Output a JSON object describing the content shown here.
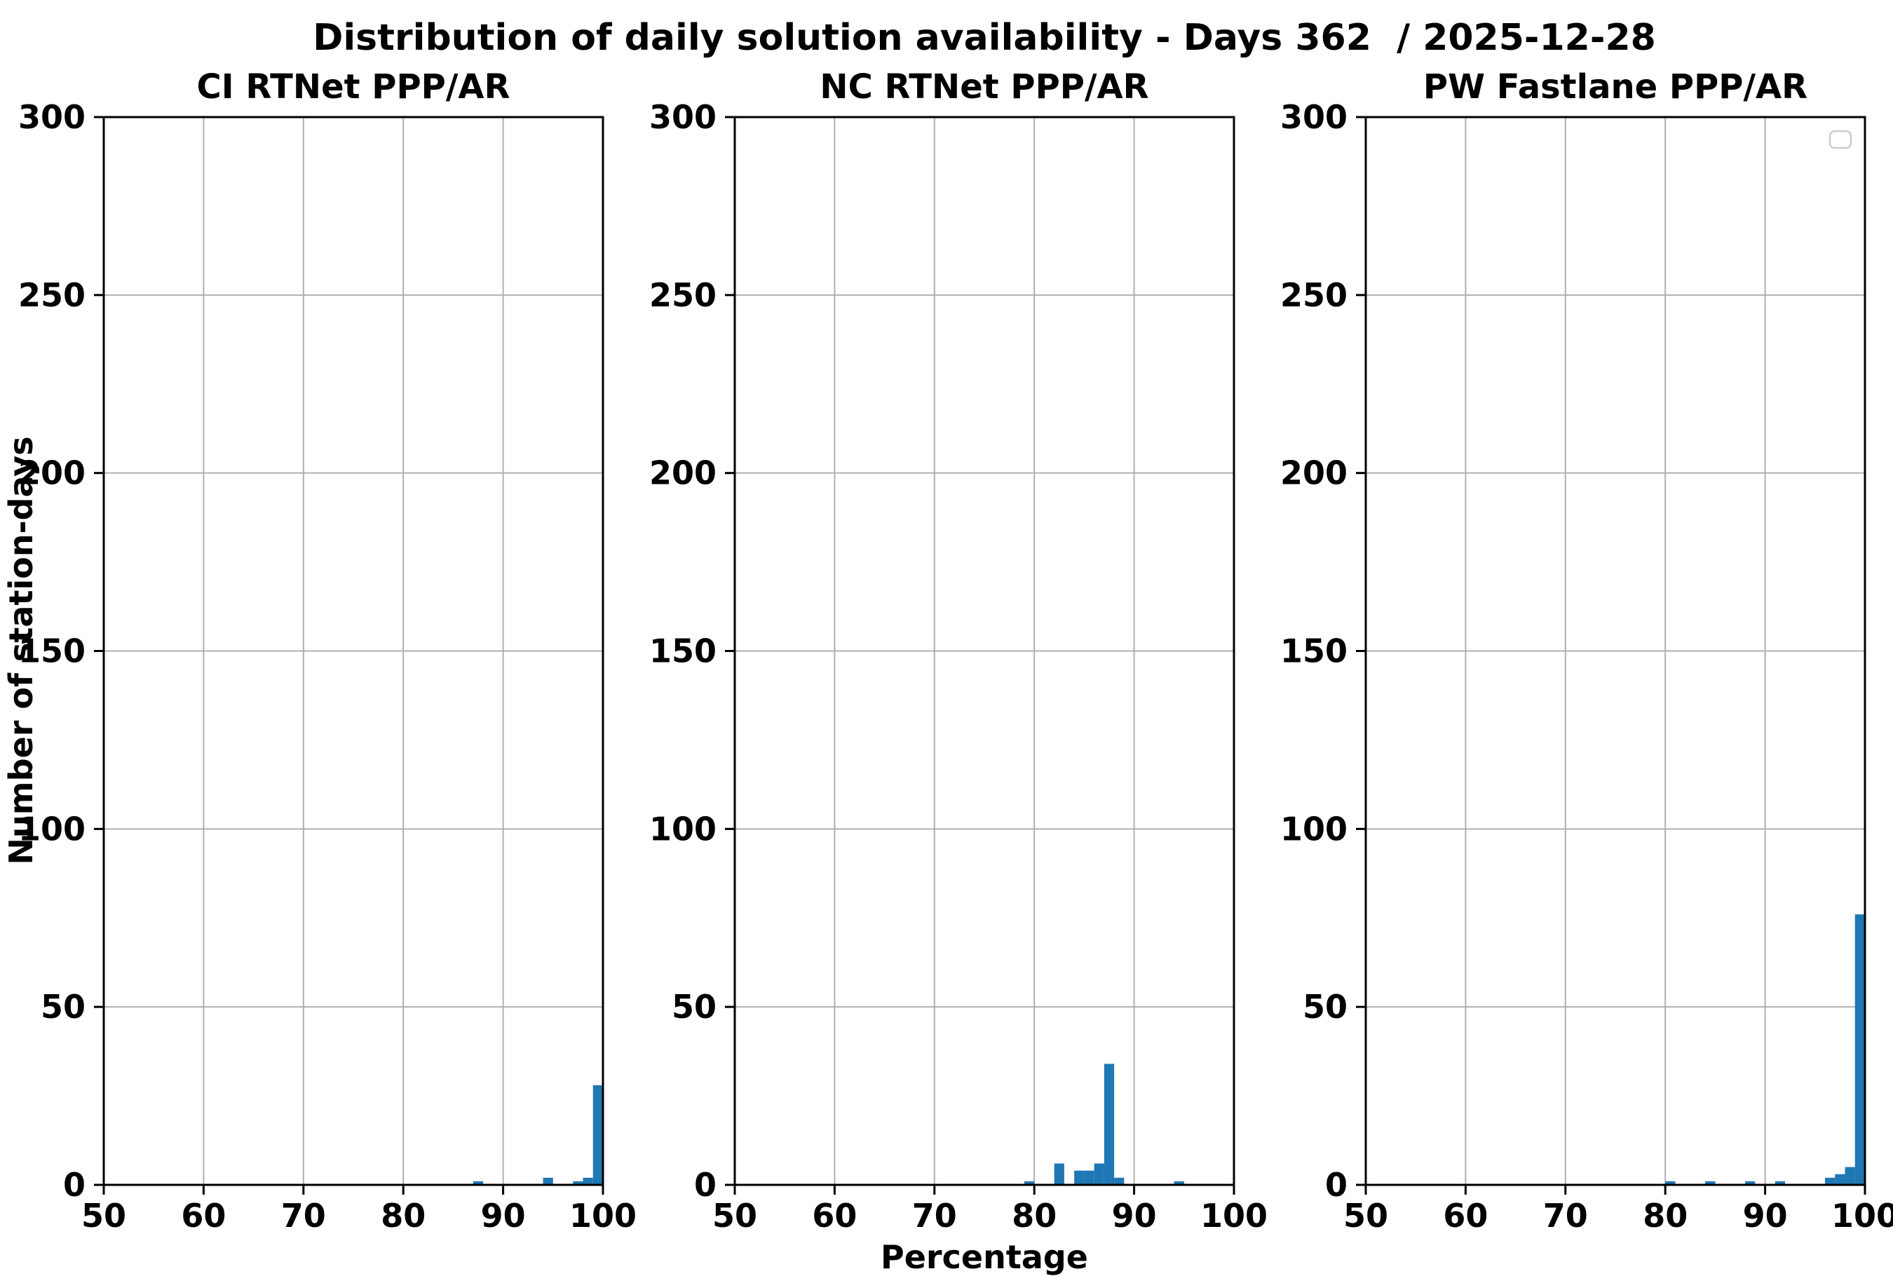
{
  "figure": {
    "title": "Distribution of daily solution availability - Days 362  / 2025-12-28",
    "ylabel": "Number of station-days",
    "xlabel": "Percentage",
    "background_color": "#ffffff",
    "bar_color": "#1f77b4",
    "grid_color": "#b0b0b0",
    "spine_color": "#000000",
    "tick_color": "#000000"
  },
  "chart_data": [
    {
      "type": "bar",
      "title": "CI RTNet PPP/AR",
      "xlabel": "Percentage",
      "ylabel": "Number of station-days",
      "xlim": [
        50,
        100
      ],
      "ylim": [
        0,
        300
      ],
      "xticks": [
        50,
        60,
        70,
        80,
        90,
        100
      ],
      "yticks": [
        0,
        50,
        100,
        150,
        200,
        250,
        300
      ],
      "grid": true,
      "bin_width": 1,
      "bars": [
        {
          "x": 87,
          "count": 1
        },
        {
          "x": 94,
          "count": 2
        },
        {
          "x": 97,
          "count": 1
        },
        {
          "x": 98,
          "count": 2
        },
        {
          "x": 99,
          "count": 28
        }
      ],
      "legend_box": false
    },
    {
      "type": "bar",
      "title": "NC RTNet PPP/AR",
      "xlabel": "Percentage",
      "ylabel": "Number of station-days",
      "xlim": [
        50,
        100
      ],
      "ylim": [
        0,
        300
      ],
      "xticks": [
        50,
        60,
        70,
        80,
        90,
        100
      ],
      "yticks": [
        0,
        50,
        100,
        150,
        200,
        250,
        300
      ],
      "grid": true,
      "bin_width": 1,
      "bars": [
        {
          "x": 79,
          "count": 1
        },
        {
          "x": 82,
          "count": 6
        },
        {
          "x": 84,
          "count": 4
        },
        {
          "x": 85,
          "count": 4
        },
        {
          "x": 86,
          "count": 6
        },
        {
          "x": 87,
          "count": 34
        },
        {
          "x": 88,
          "count": 2
        },
        {
          "x": 94,
          "count": 1
        }
      ],
      "legend_box": false
    },
    {
      "type": "bar",
      "title": "PW Fastlane PPP/AR",
      "xlabel": "Percentage",
      "ylabel": "Number of station-days",
      "xlim": [
        50,
        100
      ],
      "ylim": [
        0,
        300
      ],
      "xticks": [
        50,
        60,
        70,
        80,
        90,
        100
      ],
      "yticks": [
        0,
        50,
        100,
        150,
        200,
        250,
        300
      ],
      "grid": true,
      "bin_width": 1,
      "bars": [
        {
          "x": 80,
          "count": 1
        },
        {
          "x": 84,
          "count": 1
        },
        {
          "x": 88,
          "count": 1
        },
        {
          "x": 91,
          "count": 1
        },
        {
          "x": 96,
          "count": 2
        },
        {
          "x": 97,
          "count": 3
        },
        {
          "x": 98,
          "count": 5
        },
        {
          "x": 99,
          "count": 76
        }
      ],
      "legend_box": true
    }
  ]
}
